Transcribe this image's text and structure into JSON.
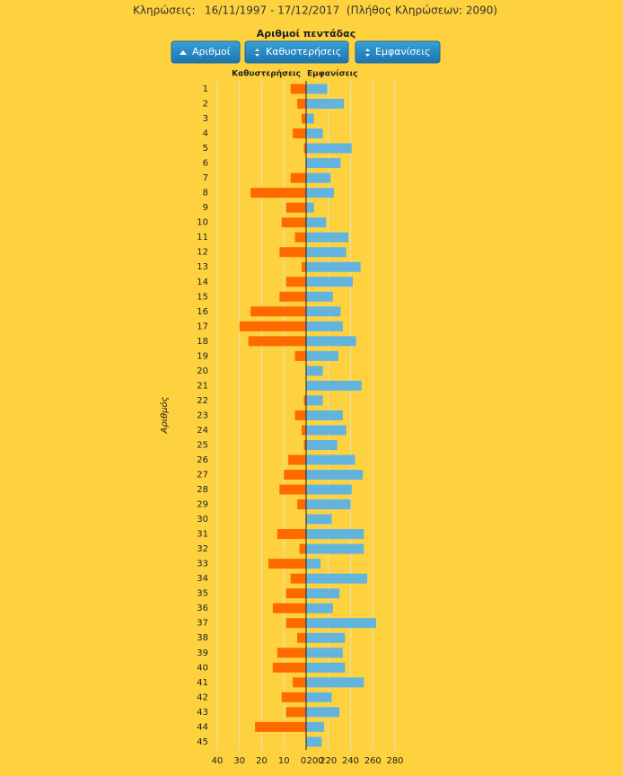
{
  "header": {
    "label": "Κληρώσεις:",
    "text": "16/11/1997 - 17/12/2017  (Πλήθος Κληρώσεων: 2090)"
  },
  "buttons": [
    "Αριθμοί",
    "Καθυστερήσεις",
    "Εμφανίσεις"
  ],
  "chart_data": {
    "type": "diverging-bar",
    "title": "Αριθμοί πεντάδας",
    "y_label": "Αριθμός",
    "categories": [
      "1",
      "2",
      "3",
      "4",
      "5",
      "6",
      "7",
      "8",
      "9",
      "10",
      "11",
      "12",
      "13",
      "14",
      "15",
      "16",
      "17",
      "18",
      "19",
      "20",
      "21",
      "22",
      "23",
      "24",
      "25",
      "26",
      "27",
      "28",
      "29",
      "30",
      "31",
      "32",
      "33",
      "34",
      "35",
      "36",
      "37",
      "38",
      "39",
      "40",
      "41",
      "42",
      "43",
      "44",
      "45"
    ],
    "xlim": [
      0,
      40
    ],
    "xticks": [
      40,
      30,
      20,
      10,
      0
    ],
    "x2lim": [
      200,
      280
    ],
    "x2ticks": [
      200,
      220,
      240,
      260,
      280
    ],
    "grid": true,
    "series": [
      {
        "name": "Καθυστερήσεις",
        "color": "#ff6a00",
        "axis": "x",
        "values": [
          7,
          4,
          2,
          6,
          1,
          0,
          7,
          25,
          9,
          11,
          5,
          12,
          2,
          9,
          12,
          25,
          30,
          26,
          5,
          0,
          0,
          1,
          5,
          2,
          1,
          8,
          10,
          12,
          4,
          0,
          13,
          3,
          17,
          7,
          9,
          15,
          9,
          4,
          13,
          15,
          6,
          11,
          9,
          23,
          0
        ]
      },
      {
        "name": "Εμφανίσεις",
        "color": "#62b4de",
        "axis": "x2",
        "values": [
          219,
          234,
          207,
          215,
          241,
          231,
          222,
          225,
          207,
          218,
          238,
          236,
          249,
          242,
          224,
          231,
          233,
          245,
          229,
          215,
          250,
          215,
          233,
          236,
          228,
          244,
          251,
          241,
          240,
          223,
          252,
          252,
          213,
          255,
          230,
          224,
          263,
          235,
          233,
          235,
          252,
          223,
          230,
          216,
          214
        ]
      }
    ]
  }
}
